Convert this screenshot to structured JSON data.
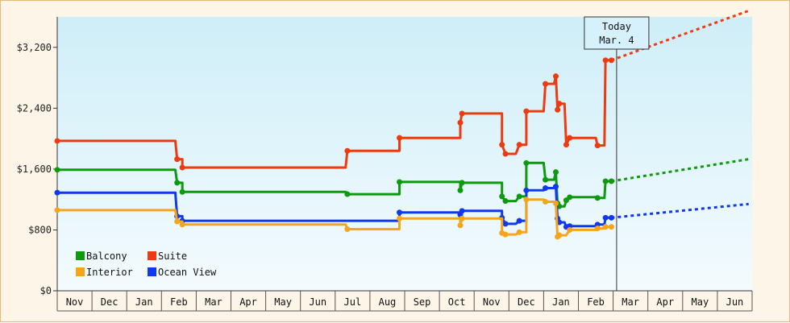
{
  "chart_data": {
    "type": "line",
    "title": "",
    "xlabel": "",
    "ylabel": "",
    "ylim": [
      0,
      3600
    ],
    "y_ticks": [
      {
        "value": 0,
        "label": "$0"
      },
      {
        "value": 800,
        "label": "$800"
      },
      {
        "value": 1600,
        "label": "$1,600"
      },
      {
        "value": 2400,
        "label": "$2,400"
      },
      {
        "value": 3200,
        "label": "$3,200"
      }
    ],
    "months": [
      "Nov",
      "Dec",
      "Jan",
      "Feb",
      "Mar",
      "Apr",
      "May",
      "Jun",
      "Jul",
      "Aug",
      "Sep",
      "Oct",
      "Nov",
      "Dec",
      "Jan",
      "Feb",
      "Mar",
      "Apr",
      "May",
      "Jun"
    ],
    "today": {
      "line1": "Today",
      "line2": "Mar. 4",
      "x": 16.1
    },
    "plot_background": [
      "#cfeef8",
      "#f4fbfe"
    ],
    "legend_position": "bottom-left",
    "legend": [
      {
        "name": "Balcony",
        "color": "#0e9a0e"
      },
      {
        "name": "Suite",
        "color": "#ee3a10"
      },
      {
        "name": "Interior",
        "color": "#f5a51a"
      },
      {
        "name": "Ocean View",
        "color": "#1038ee"
      }
    ],
    "series": [
      {
        "name": "Suite",
        "color": "#ee3a10",
        "points": [
          [
            0,
            1970
          ],
          [
            3.4,
            1970
          ],
          [
            3.45,
            1730
          ],
          [
            3.6,
            1730
          ],
          [
            3.6,
            1620
          ],
          [
            8.3,
            1620
          ],
          [
            8.35,
            1840
          ],
          [
            9.85,
            1840
          ],
          [
            9.85,
            2010
          ],
          [
            11.6,
            2010
          ],
          [
            11.6,
            2210
          ],
          [
            11.65,
            2330
          ],
          [
            12.8,
            2330
          ],
          [
            12.8,
            1920
          ],
          [
            12.9,
            1800
          ],
          [
            13.2,
            1800
          ],
          [
            13.3,
            1920
          ],
          [
            13.5,
            1920
          ],
          [
            13.5,
            2360
          ],
          [
            14.0,
            2360
          ],
          [
            14.05,
            2720
          ],
          [
            14.3,
            2720
          ],
          [
            14.35,
            2820
          ],
          [
            14.4,
            2380
          ],
          [
            14.45,
            2460
          ],
          [
            14.6,
            2460
          ],
          [
            14.65,
            1920
          ],
          [
            14.75,
            2010
          ],
          [
            15.5,
            2010
          ],
          [
            15.55,
            1910
          ],
          [
            15.75,
            1910
          ],
          [
            15.78,
            3030
          ],
          [
            15.95,
            3030
          ]
        ],
        "projection": [
          [
            15.95,
            3030
          ],
          [
            19.9,
            3680
          ]
        ]
      },
      {
        "name": "Balcony",
        "color": "#0e9a0e",
        "points": [
          [
            0,
            1590
          ],
          [
            3.4,
            1590
          ],
          [
            3.45,
            1420
          ],
          [
            3.6,
            1420
          ],
          [
            3.6,
            1300
          ],
          [
            8.3,
            1300
          ],
          [
            8.35,
            1270
          ],
          [
            9.85,
            1270
          ],
          [
            9.85,
            1430
          ],
          [
            11.6,
            1430
          ],
          [
            11.6,
            1320
          ],
          [
            11.65,
            1420
          ],
          [
            12.8,
            1420
          ],
          [
            12.8,
            1240
          ],
          [
            12.9,
            1180
          ],
          [
            13.2,
            1180
          ],
          [
            13.3,
            1240
          ],
          [
            13.5,
            1240
          ],
          [
            13.5,
            1680
          ],
          [
            14.0,
            1680
          ],
          [
            14.05,
            1460
          ],
          [
            14.3,
            1460
          ],
          [
            14.35,
            1560
          ],
          [
            14.4,
            1150
          ],
          [
            14.45,
            1110
          ],
          [
            14.6,
            1110
          ],
          [
            14.65,
            1190
          ],
          [
            14.75,
            1230
          ],
          [
            15.5,
            1230
          ],
          [
            15.55,
            1220
          ],
          [
            15.75,
            1220
          ],
          [
            15.78,
            1440
          ],
          [
            15.95,
            1440
          ]
        ],
        "projection": [
          [
            15.95,
            1440
          ],
          [
            19.9,
            1730
          ]
        ]
      },
      {
        "name": "Ocean View",
        "color": "#1038ee",
        "points": [
          [
            0,
            1290
          ],
          [
            3.4,
            1290
          ],
          [
            3.45,
            980
          ],
          [
            3.6,
            980
          ],
          [
            3.6,
            920
          ],
          [
            8.3,
            920
          ],
          [
            8.35,
            920
          ],
          [
            9.85,
            920
          ],
          [
            9.85,
            1030
          ],
          [
            11.6,
            1030
          ],
          [
            11.6,
            1000
          ],
          [
            11.65,
            1050
          ],
          [
            12.8,
            1050
          ],
          [
            12.8,
            960
          ],
          [
            12.9,
            880
          ],
          [
            13.2,
            880
          ],
          [
            13.3,
            920
          ],
          [
            13.5,
            920
          ],
          [
            13.5,
            1320
          ],
          [
            14.0,
            1320
          ],
          [
            14.05,
            1350
          ],
          [
            14.3,
            1350
          ],
          [
            14.35,
            1370
          ],
          [
            14.4,
            950
          ],
          [
            14.45,
            900
          ],
          [
            14.6,
            900
          ],
          [
            14.65,
            840
          ],
          [
            14.75,
            850
          ],
          [
            15.5,
            850
          ],
          [
            15.55,
            870
          ],
          [
            15.75,
            870
          ],
          [
            15.78,
            960
          ],
          [
            15.95,
            960
          ]
        ],
        "projection": [
          [
            15.95,
            960
          ],
          [
            19.9,
            1140
          ]
        ]
      },
      {
        "name": "Interior",
        "color": "#f5a51a",
        "points": [
          [
            0,
            1060
          ],
          [
            3.4,
            1060
          ],
          [
            3.45,
            910
          ],
          [
            3.6,
            910
          ],
          [
            3.6,
            870
          ],
          [
            8.3,
            870
          ],
          [
            8.35,
            810
          ],
          [
            9.85,
            810
          ],
          [
            9.85,
            950
          ],
          [
            11.6,
            950
          ],
          [
            11.6,
            860
          ],
          [
            11.65,
            950
          ],
          [
            12.8,
            950
          ],
          [
            12.8,
            760
          ],
          [
            12.9,
            740
          ],
          [
            13.2,
            740
          ],
          [
            13.3,
            770
          ],
          [
            13.5,
            770
          ],
          [
            13.5,
            1200
          ],
          [
            14.0,
            1200
          ],
          [
            14.05,
            1170
          ],
          [
            14.3,
            1170
          ],
          [
            14.35,
            1150
          ],
          [
            14.4,
            710
          ],
          [
            14.45,
            730
          ],
          [
            14.6,
            730
          ],
          [
            14.65,
            730
          ],
          [
            14.75,
            800
          ],
          [
            15.5,
            800
          ],
          [
            15.55,
            820
          ],
          [
            15.75,
            820
          ],
          [
            15.78,
            840
          ],
          [
            15.95,
            840
          ]
        ]
      }
    ]
  }
}
